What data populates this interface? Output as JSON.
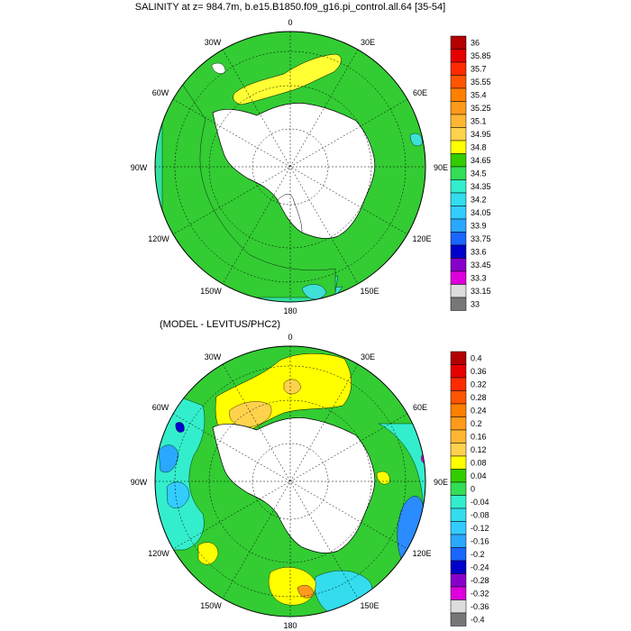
{
  "panels": [
    {
      "id": "top",
      "title": "SALINITY at z= 984.7m, b.e15.B1850.f09_g16.pi_control.all.64 [35-54]",
      "lon_labels": [
        "0",
        "30E",
        "60E",
        "90E",
        "120E",
        "150E",
        "180",
        "150W",
        "120W",
        "90W",
        "60W",
        "30W"
      ],
      "colorbar": {
        "labels": [
          "36",
          "35.85",
          "35.7",
          "35.55",
          "35.4",
          "35.25",
          "35.1",
          "34.95",
          "34.8",
          "34.65",
          "34.5",
          "34.35",
          "34.2",
          "34.05",
          "33.9",
          "33.75",
          "33.6",
          "33.45",
          "33.3",
          "33.15",
          "33"
        ],
        "colors": [
          "#b30000",
          "#e60000",
          "#ff2a00",
          "#ff5500",
          "#ff8000",
          "#ff9a1a",
          "#ffb733",
          "#ffd24d",
          "#ffff00",
          "#33cc00",
          "#33dd55",
          "#33eecc",
          "#33ddee",
          "#33ccff",
          "#2aa8ff",
          "#1a66ff",
          "#0000cc",
          "#8800cc",
          "#dd00dd",
          "#dddddd",
          "#777777"
        ]
      },
      "fields": {
        "land_color": "#ffffff",
        "ocean_base": "#33cc33",
        "rim_colors": [
          "#3ee0d8",
          "#33e0a0"
        ],
        "band_colors": [
          "#ffff33",
          "#33cc33"
        ]
      }
    },
    {
      "id": "bottom",
      "title": "(MODEL - LEVITUS/PHC2)",
      "lon_labels": [
        "0",
        "30E",
        "60E",
        "90E",
        "120E",
        "150E",
        "180",
        "150W",
        "120W",
        "90W",
        "60W",
        "30W"
      ],
      "colorbar": {
        "labels": [
          "0.4",
          "0.36",
          "0.32",
          "0.28",
          "0.24",
          "0.2",
          "0.16",
          "0.12",
          "0.08",
          "0.04",
          "0",
          "-0.04",
          "-0.08",
          "-0.12",
          "-0.16",
          "-0.2",
          "-0.24",
          "-0.28",
          "-0.32",
          "-0.36",
          "-0.4"
        ],
        "colors": [
          "#b30000",
          "#e60000",
          "#ff2a00",
          "#ff5500",
          "#ff8000",
          "#ff9a1a",
          "#ffb733",
          "#ffd24d",
          "#ffff00",
          "#33cc00",
          "#33dd55",
          "#33eecc",
          "#33ddee",
          "#33ccff",
          "#2aa8ff",
          "#1a66ff",
          "#0000cc",
          "#8800cc",
          "#dd00dd",
          "#dddddd",
          "#777777"
        ]
      },
      "fields": {
        "land_color": "#ffffff",
        "ocean_base": "#33cc33",
        "cyan_color": "#33eecc",
        "yellow_color": "#ffff00",
        "blue_color": "#2a8cff"
      }
    }
  ]
}
